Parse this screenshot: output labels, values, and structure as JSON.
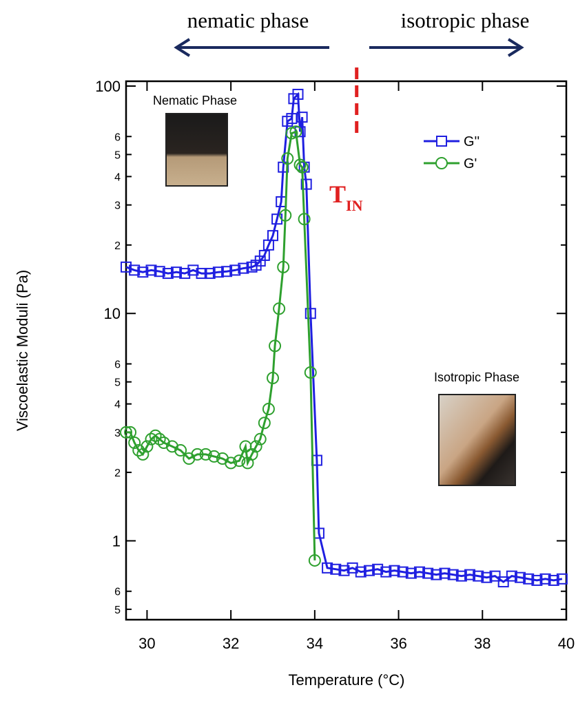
{
  "chart_data": {
    "type": "scatter",
    "top_labels": [
      "nematic phase",
      "isotropic phase"
    ],
    "annotations": [
      {
        "text": "T",
        "subscript": "IN",
        "color": "#e02020"
      },
      {
        "text": "Nematic Phase"
      },
      {
        "text": "Isotropic Phase"
      }
    ],
    "xlabel": "Temperature (°C)",
    "ylabel": "Viscoelastic Moduli (Pa)",
    "xlim": [
      29.5,
      40
    ],
    "xticks": [
      30,
      32,
      34,
      36,
      38,
      40
    ],
    "ylim": [
      0.45,
      105
    ],
    "log_y": true,
    "yticks": [
      {
        "value": 0.5,
        "label": "5"
      },
      {
        "value": 0.6,
        "label": "6"
      },
      1,
      {
        "value": 2,
        "label": "2"
      },
      {
        "value": 3,
        "label": "3"
      },
      {
        "value": 4,
        "label": "4"
      },
      {
        "value": 5,
        "label": "5"
      },
      {
        "value": 6,
        "label": "6"
      },
      10,
      {
        "value": 20,
        "label": "2"
      },
      {
        "value": 30,
        "label": "3"
      },
      {
        "value": 40,
        "label": "4"
      },
      {
        "value": 50,
        "label": "5"
      },
      {
        "value": 60,
        "label": "6"
      },
      100
    ],
    "vline": {
      "x": 35,
      "color": "#e02020"
    },
    "legend": "upper right",
    "series": [
      {
        "name": "G''",
        "color": "#1f1fe0",
        "marker": "square",
        "x": [
          29.5,
          29.7,
          29.9,
          30.1,
          30.3,
          30.5,
          30.7,
          30.9,
          31.1,
          31.3,
          31.5,
          31.7,
          31.9,
          32.1,
          32.3,
          32.5,
          32.6,
          32.7,
          32.8,
          32.9,
          33.0,
          33.1,
          33.2,
          33.25,
          33.35,
          33.45,
          33.5,
          33.6,
          33.65,
          33.7,
          33.75,
          33.8,
          33.9,
          34.05,
          34.1,
          34.3,
          34.5,
          34.7,
          34.9,
          35.1,
          35.3,
          35.5,
          35.7,
          35.9,
          36.1,
          36.3,
          36.5,
          36.7,
          36.9,
          37.1,
          37.3,
          37.5,
          37.7,
          37.9,
          38.1,
          38.3,
          38.5,
          38.7,
          38.9,
          39.1,
          39.3,
          39.5,
          39.7,
          39.9
        ],
        "values": [
          16,
          15.5,
          15.2,
          15.5,
          15.3,
          15,
          15.2,
          15,
          15.5,
          15,
          15,
          15.2,
          15.3,
          15.5,
          15.8,
          16,
          16.3,
          17,
          18,
          20,
          22,
          26,
          31,
          44,
          70,
          72,
          88,
          92,
          63,
          73,
          44,
          37,
          10,
          2.26,
          1.08,
          0.76,
          0.75,
          0.74,
          0.76,
          0.73,
          0.74,
          0.75,
          0.73,
          0.74,
          0.73,
          0.72,
          0.73,
          0.72,
          0.71,
          0.72,
          0.71,
          0.7,
          0.71,
          0.7,
          0.69,
          0.7,
          0.66,
          0.7,
          0.69,
          0.68,
          0.67,
          0.68,
          0.67,
          0.68
        ]
      },
      {
        "name": "G'",
        "color": "#2ea02e",
        "marker": "circle",
        "x": [
          29.5,
          29.6,
          29.7,
          29.8,
          29.9,
          30.0,
          30.1,
          30.2,
          30.3,
          30.4,
          30.6,
          30.8,
          31.0,
          31.2,
          31.4,
          31.6,
          31.8,
          32.0,
          32.2,
          32.35,
          32.4,
          32.5,
          32.6,
          32.7,
          32.8,
          32.9,
          33.0,
          33.05,
          33.15,
          33.25,
          33.3,
          33.35,
          33.45,
          33.55,
          33.65,
          33.7,
          33.75,
          33.9,
          34.0
        ],
        "values": [
          3.0,
          3.0,
          2.7,
          2.5,
          2.4,
          2.6,
          2.8,
          2.9,
          2.8,
          2.7,
          2.6,
          2.5,
          2.3,
          2.4,
          2.4,
          2.35,
          2.3,
          2.2,
          2.25,
          2.6,
          2.2,
          2.4,
          2.6,
          2.8,
          3.3,
          3.8,
          5.2,
          7.2,
          10.5,
          16,
          27,
          48,
          62,
          63,
          45,
          44,
          26,
          5.5,
          0.82
        ]
      }
    ]
  }
}
